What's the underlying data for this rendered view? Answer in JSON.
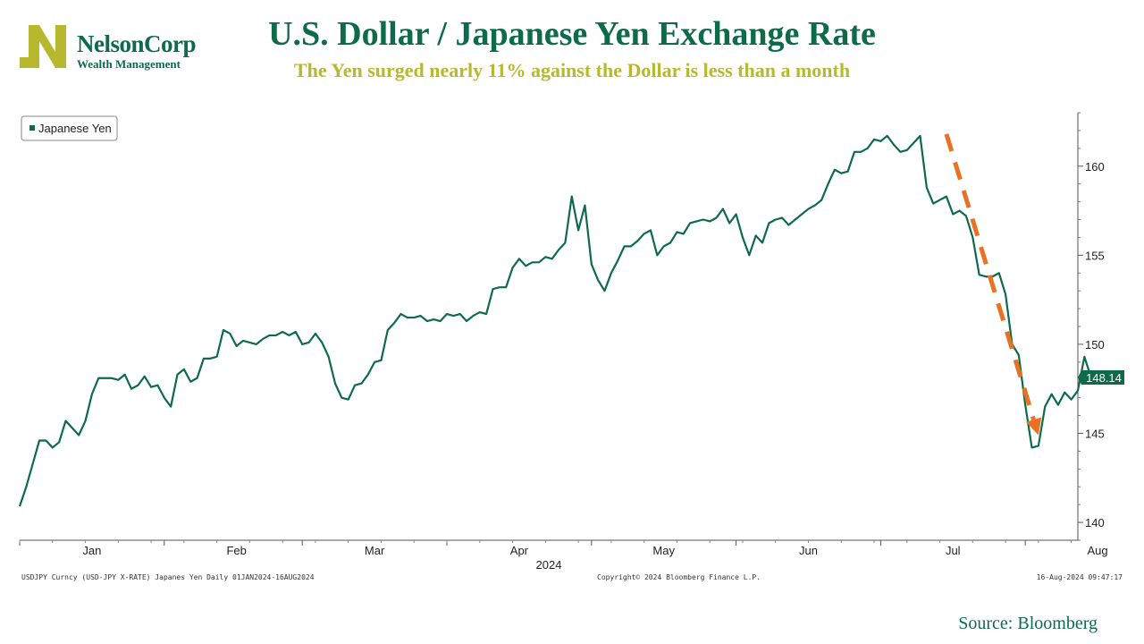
{
  "brand": {
    "name": "NelsonCorp",
    "tagline": "Wealth Management",
    "logo_letter": "N",
    "colors": {
      "green": "#0e6b4a",
      "gold": "#b7b82f"
    }
  },
  "header": {
    "title": "U.S. Dollar / Japanese Yen Exchange Rate",
    "subtitle": "The Yen surged nearly 11% against the Dollar is less than a month"
  },
  "source": "Source: Bloomberg",
  "footer": {
    "left": "USDJPY Curncy (USD-JPY X-RATE) Japanes Yen  Daily 01JAN2024-16AUG2024",
    "center": "Copyright© 2024 Bloomberg Finance L.P.",
    "right": "16-Aug-2024 09:47:17"
  },
  "chart_data": {
    "type": "line",
    "title": "U.S. Dollar / Japanese Yen Exchange Rate",
    "xlabel": "2024",
    "ylabel": "",
    "ylim": [
      139,
      163
    ],
    "yticks": [
      140,
      145,
      150,
      155,
      160
    ],
    "xlim": [
      0,
      161
    ],
    "x_tick_labels": [
      {
        "label": "Jan",
        "x": 11
      },
      {
        "label": "Feb",
        "x": 33
      },
      {
        "label": "Mar",
        "x": 54
      },
      {
        "label": "Apr",
        "x": 76
      },
      {
        "label": "May",
        "x": 98
      },
      {
        "label": "Jun",
        "x": 120
      },
      {
        "label": "Jul",
        "x": 142
      },
      {
        "label": "Aug",
        "x": 164
      }
    ],
    "year_label": "2024",
    "legend": {
      "label": "Japanese Yen",
      "position": "top-left"
    },
    "last_value_label": "148.14",
    "annotation": {
      "type": "arrow",
      "from": [
        141,
        161.8
      ],
      "to": [
        155,
        144.9
      ],
      "color": "#e97124",
      "style": "dashed"
    },
    "series": [
      {
        "name": "Japanese Yen",
        "color": "#0e6b4a",
        "values": [
          140.9,
          142.0,
          143.3,
          144.6,
          144.6,
          144.2,
          144.5,
          145.7,
          145.3,
          144.9,
          145.7,
          147.2,
          148.1,
          148.1,
          148.1,
          148.0,
          148.3,
          147.5,
          147.7,
          148.2,
          147.6,
          147.7,
          147.0,
          146.5,
          148.3,
          148.6,
          147.9,
          148.1,
          149.2,
          149.2,
          149.3,
          150.8,
          150.6,
          149.9,
          150.2,
          150.1,
          150.0,
          150.3,
          150.5,
          150.5,
          150.7,
          150.5,
          150.7,
          150.0,
          150.1,
          150.6,
          150.1,
          149.3,
          147.8,
          147.0,
          146.9,
          147.7,
          147.8,
          148.3,
          149.0,
          149.1,
          150.8,
          151.2,
          151.7,
          151.5,
          151.5,
          151.6,
          151.3,
          151.4,
          151.3,
          151.7,
          151.6,
          151.7,
          151.3,
          151.6,
          151.8,
          151.7,
          153.1,
          153.2,
          153.2,
          154.3,
          154.8,
          154.4,
          154.6,
          154.6,
          154.9,
          154.8,
          155.3,
          155.7,
          158.3,
          156.4,
          157.8,
          154.5,
          153.6,
          153.0,
          154.0,
          154.7,
          155.5,
          155.5,
          155.8,
          156.2,
          156.4,
          155.0,
          155.5,
          155.7,
          156.3,
          156.2,
          156.8,
          156.9,
          157.0,
          156.9,
          157.1,
          157.6,
          156.8,
          157.3,
          156.0,
          155.0,
          156.1,
          155.7,
          156.8,
          157.0,
          157.1,
          156.7,
          157.0,
          157.3,
          157.6,
          157.8,
          158.1,
          159.0,
          159.8,
          159.6,
          159.7,
          160.8,
          160.8,
          161.0,
          161.5,
          161.4,
          161.7,
          161.2,
          160.8,
          160.9,
          161.3,
          161.7,
          158.8,
          157.9,
          158.1,
          158.3,
          157.3,
          157.5,
          157.2,
          156.0,
          153.9,
          153.8,
          153.8,
          154.0,
          152.8,
          150.0,
          149.4,
          146.6,
          144.2,
          144.3,
          146.5,
          147.2,
          146.6,
          147.3,
          146.9,
          147.4,
          149.3,
          148.14
        ]
      }
    ]
  }
}
